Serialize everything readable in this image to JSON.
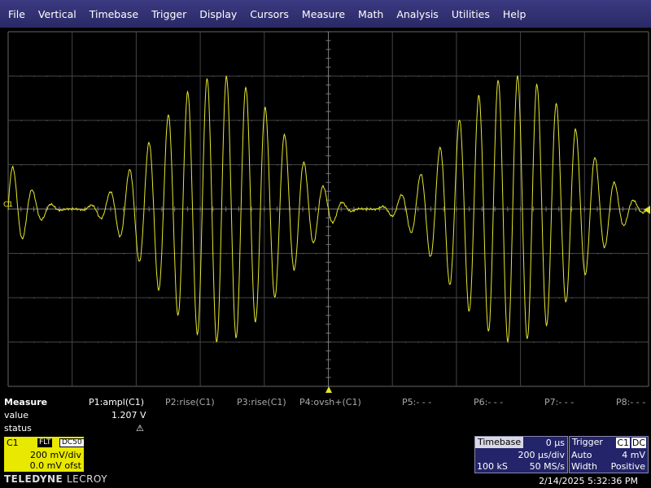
{
  "menu": [
    "File",
    "Vertical",
    "Timebase",
    "Trigger",
    "Display",
    "Cursors",
    "Measure",
    "Math",
    "Analysis",
    "Utilities",
    "Help"
  ],
  "channel_marker": "C1",
  "trace_color": "#e6e62e",
  "measure": {
    "title": "Measure",
    "row_value_label": "value",
    "row_status_label": "status",
    "params": [
      {
        "name": "P1:ampl(C1)",
        "value": "1.207 V",
        "status": "⚠"
      },
      {
        "name": "P2:rise(C1)",
        "value": "",
        "status": ""
      },
      {
        "name": "P3:rise(C1)",
        "value": "",
        "status": ""
      },
      {
        "name": "P4:ovsh+(C1)",
        "value": "",
        "status": ""
      },
      {
        "name": "P5:- - -",
        "value": "",
        "status": ""
      },
      {
        "name": "P6:- - -",
        "value": "",
        "status": ""
      },
      {
        "name": "P7:- - -",
        "value": "",
        "status": ""
      },
      {
        "name": "P8:- - -",
        "value": "",
        "status": ""
      }
    ]
  },
  "c1": {
    "label": "C1",
    "filter": "FLT",
    "coupling": "DC50",
    "vdiv": "200 mV/div",
    "offset": "0.0 mV ofst"
  },
  "timebase": {
    "title": "Timebase",
    "delay": "0 µs",
    "tdiv": "200 µs/div",
    "samples": "100 kS",
    "rate": "50 MS/s"
  },
  "trigger": {
    "title": "Trigger",
    "source": "C1",
    "coupling": "DC",
    "mode": "Auto",
    "level": "4 mV",
    "type": "Width",
    "slope": "Positive"
  },
  "brand": {
    "teledyne": "TELEDYNE",
    "lecroy": "LECROY"
  },
  "datetime": "2/14/2025 5:32:36 PM",
  "chart_data": {
    "type": "line",
    "title": "",
    "xlabel": "",
    "ylabel": "",
    "divisions": {
      "x": 10,
      "y": 8
    },
    "volts_per_div": 0.2,
    "seconds_per_div": 0.0002,
    "series": [
      {
        "name": "C1",
        "description_values": {
          "carrier_cycles_per_div": 3.3,
          "envelope_period_div": 4.6,
          "peak_amplitude_v": 0.6
        }
      }
    ]
  }
}
